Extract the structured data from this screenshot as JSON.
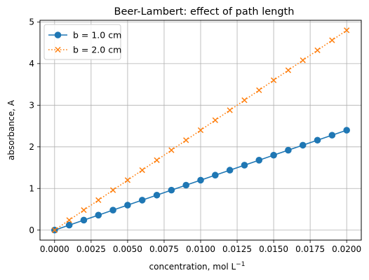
{
  "chart_data": {
    "type": "line",
    "title": "Beer-Lambert: effect of path length",
    "xlabel": "concentration, mol L",
    "xlabel_superscript": "−1",
    "ylabel": "absorbance, A",
    "xlim": [
      -0.001,
      0.021
    ],
    "ylim": [
      -0.24,
      5.04
    ],
    "x_ticks": [
      0,
      0.0025,
      0.005,
      0.0075,
      0.01,
      0.0125,
      0.015,
      0.0175,
      0.02
    ],
    "x_tick_labels": [
      "0.0000",
      "0.0025",
      "0.0050",
      "0.0075",
      "0.0100",
      "0.0125",
      "0.0150",
      "0.0175",
      "0.0200"
    ],
    "y_ticks": [
      0,
      1,
      2,
      3,
      4,
      5
    ],
    "y_tick_labels": [
      "0",
      "1",
      "2",
      "3",
      "4",
      "5"
    ],
    "grid": true,
    "legend_position": "top-left",
    "x": [
      0,
      0.001,
      0.002,
      0.003,
      0.004,
      0.005,
      0.006,
      0.007,
      0.008,
      0.009,
      0.01,
      0.011,
      0.012,
      0.013,
      0.014,
      0.015,
      0.016,
      0.017,
      0.018,
      0.019,
      0.02
    ],
    "series": [
      {
        "name": "b = 1.0 cm",
        "color": "#1f77b4",
        "line_style": "solid",
        "marker": "circle",
        "values": [
          0,
          0.12,
          0.24,
          0.36,
          0.48,
          0.6,
          0.72,
          0.84,
          0.96,
          1.08,
          1.2,
          1.32,
          1.44,
          1.56,
          1.68,
          1.8,
          1.92,
          2.04,
          2.16,
          2.28,
          2.4
        ]
      },
      {
        "name": "b = 2.0 cm",
        "color": "#ff7f0e",
        "line_style": "dotted",
        "marker": "x",
        "values": [
          0,
          0.24,
          0.48,
          0.72,
          0.96,
          1.2,
          1.44,
          1.68,
          1.92,
          2.16,
          2.4,
          2.64,
          2.88,
          3.12,
          3.36,
          3.6,
          3.84,
          4.08,
          4.32,
          4.56,
          4.8
        ]
      }
    ]
  }
}
